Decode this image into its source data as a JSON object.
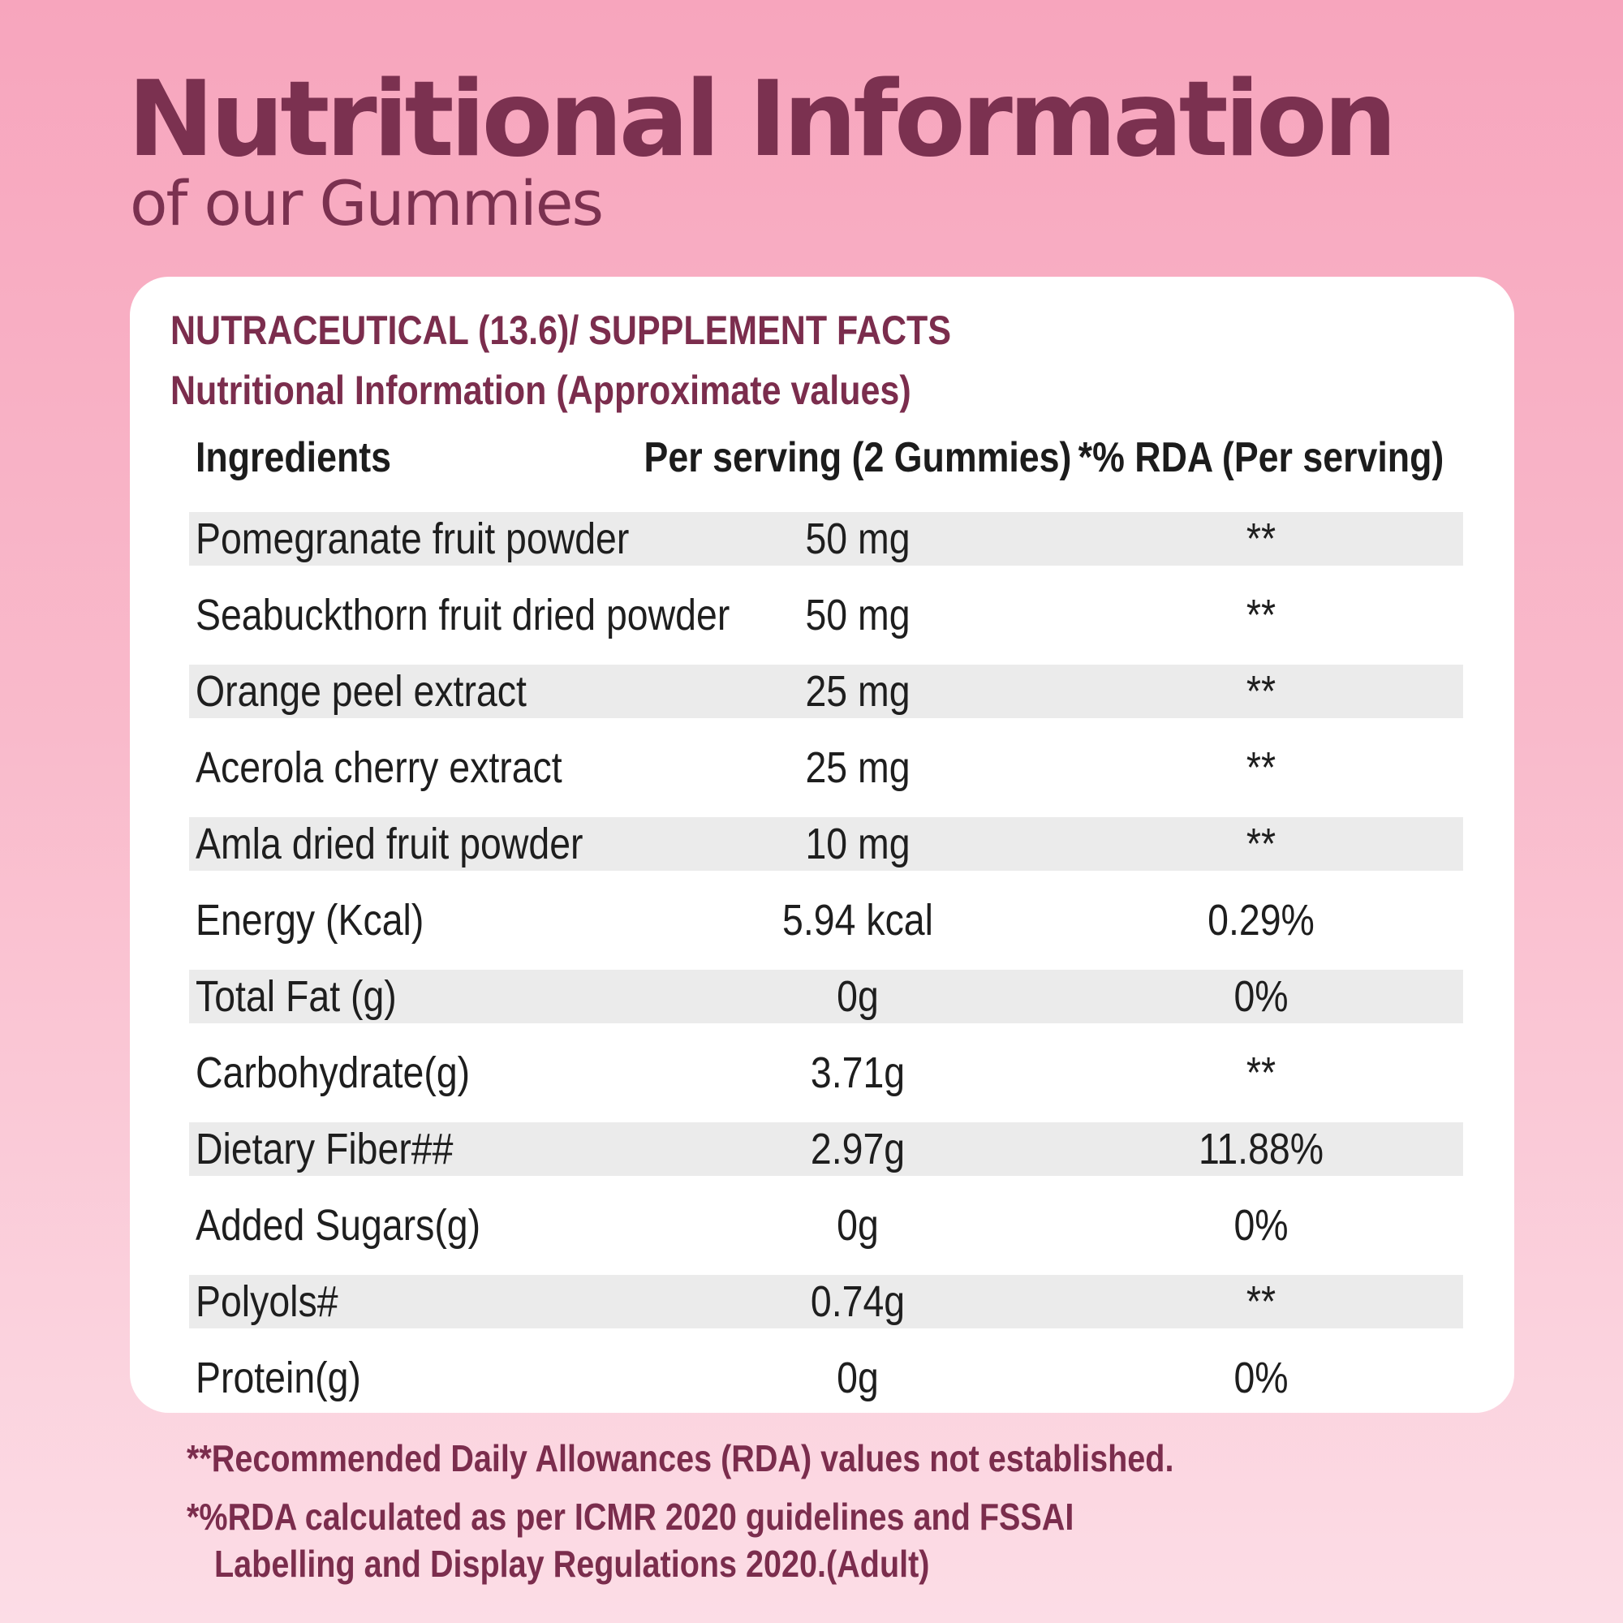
{
  "hero": {
    "title": "Nutritional Information",
    "subtitle": "of our Gummies"
  },
  "card": {
    "heading": "NUTRACEUTICAL (13.6)/ SUPPLEMENT FACTS",
    "subheading": "Nutritional Information (Approximate values)",
    "columns": {
      "ingredients": "Ingredients",
      "per_serving": "Per serving (2 Gummies)",
      "rda": "*% RDA (Per serving)"
    },
    "rows": [
      {
        "name": "Pomegranate fruit powder",
        "per_serving": "50 mg",
        "rda": "**"
      },
      {
        "name": "Seabuckthorn fruit dried powder",
        "per_serving": "50 mg",
        "rda": "**"
      },
      {
        "name": "Orange peel extract",
        "per_serving": "25 mg",
        "rda": "**"
      },
      {
        "name": "Acerola cherry extract",
        "per_serving": "25 mg",
        "rda": "**"
      },
      {
        "name": "Amla dried fruit powder",
        "per_serving": "10 mg",
        "rda": "**"
      },
      {
        "name": "Energy (Kcal)",
        "per_serving": "5.94 kcal",
        "rda": "0.29%"
      },
      {
        "name": "Total Fat (g)",
        "per_serving": "0g",
        "rda": "0%"
      },
      {
        "name": "Carbohydrate(g)",
        "per_serving": "3.71g",
        "rda": "**"
      },
      {
        "name": "Dietary Fiber##",
        "per_serving": "2.97g",
        "rda": "11.88%"
      },
      {
        "name": "Added Sugars(g)",
        "per_serving": "0g",
        "rda": "0%"
      },
      {
        "name": "Polyols#",
        "per_serving": "0.74g",
        "rda": "**"
      },
      {
        "name": "Protein(g)",
        "per_serving": "0g",
        "rda": "0%"
      }
    ]
  },
  "footnotes": {
    "note1": "**Recommended Daily Allowances (RDA) values not established.",
    "note2_line1": "*%RDA calculated as per ICMR 2020 guidelines and FSSAI",
    "note2_line2": "Labelling and Display Regulations 2020.(Adult)"
  },
  "colors": {
    "brand": "#7b3150",
    "row_shade": "#ebebeb",
    "card": "#ffffff"
  }
}
